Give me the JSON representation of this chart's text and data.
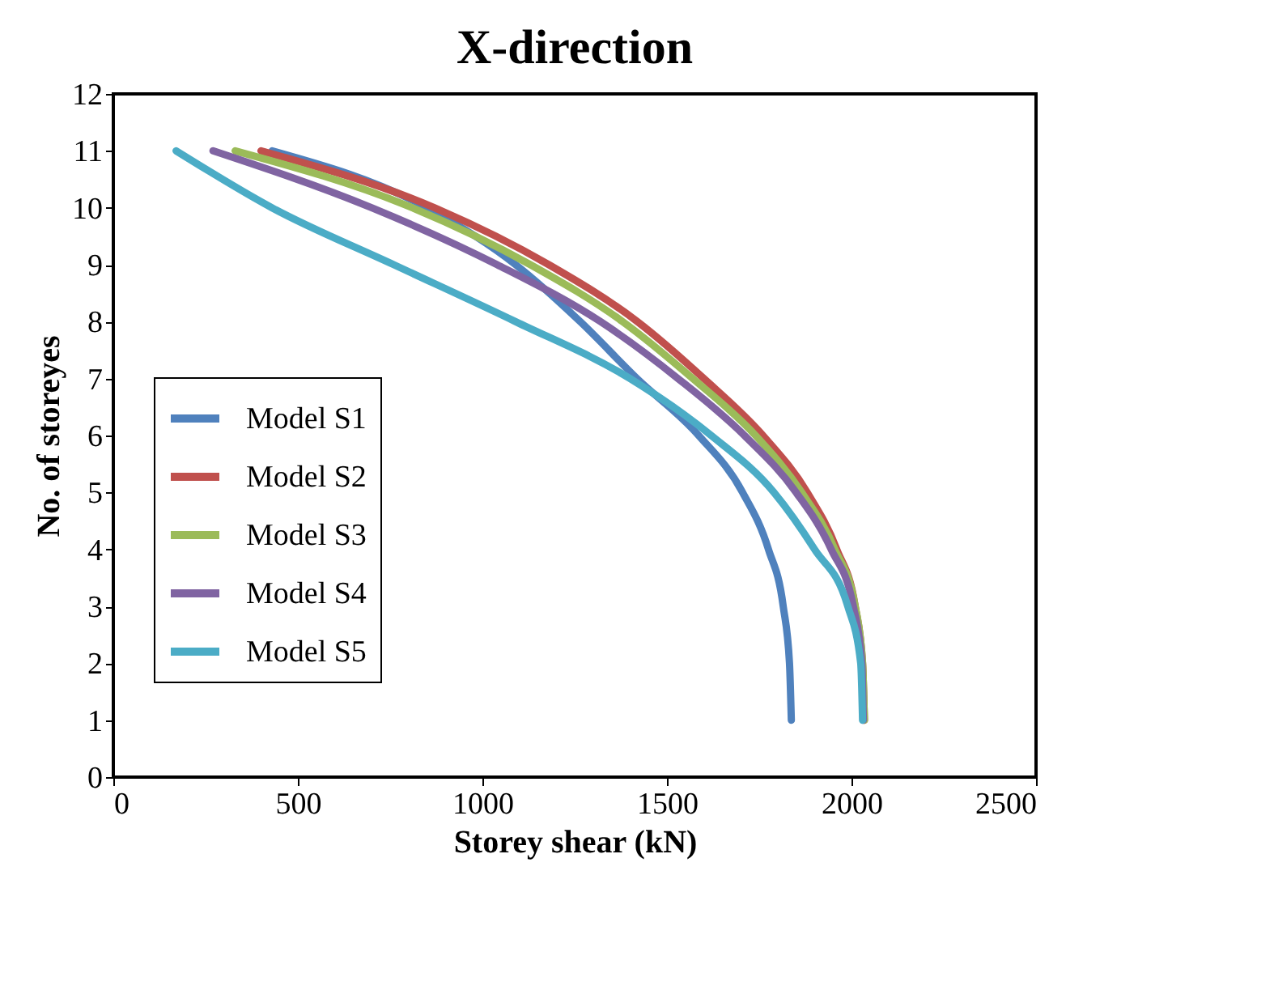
{
  "chart_data": {
    "type": "line",
    "title": "X-direction",
    "xlabel": "Storey shear (kN)",
    "ylabel": "No. of storeyes",
    "xlim": [
      0,
      2500
    ],
    "xticks": [
      0,
      500,
      1000,
      1500,
      2000,
      2500
    ],
    "ylim": [
      0,
      12
    ],
    "yticks": [
      0,
      1,
      2,
      3,
      4,
      5,
      6,
      7,
      8,
      9,
      10,
      11,
      12
    ],
    "grid": false,
    "legend": "bottom left",
    "marker": "none",
    "line_style": "solid",
    "series": [
      {
        "name": "Model S1",
        "color": "#4f81bd",
        "x": [
          1837,
          1832,
          1815,
          1775,
          1705,
          1586,
          1419,
          1265,
          1090,
          850,
          430
        ],
        "values": [
          1,
          2,
          3,
          4,
          5,
          6,
          7,
          8,
          9,
          10,
          11
        ]
      },
      {
        "name": "Model S2",
        "color": "#c0504d",
        "x": [
          2035,
          2030,
          2010,
          1960,
          1880,
          1760,
          1600,
          1420,
          1180,
          870,
          400
        ],
        "values": [
          1,
          2,
          3,
          4,
          5,
          6,
          7,
          8,
          9,
          10,
          11
        ]
      },
      {
        "name": "Model S3",
        "color": "#9bbb59",
        "x": [
          2035,
          2030,
          2010,
          1955,
          1865,
          1740,
          1570,
          1380,
          1130,
          810,
          330
        ],
        "values": [
          1,
          2,
          3,
          4,
          5,
          6,
          7,
          8,
          9,
          10,
          11
        ]
      },
      {
        "name": "Model S4",
        "color": "#8064a2",
        "x": [
          2032,
          2028,
          2005,
          1945,
          1850,
          1710,
          1530,
          1320,
          1040,
          700,
          270
        ],
        "values": [
          1,
          2,
          3,
          4,
          5,
          6,
          7,
          8,
          9,
          10,
          11
        ]
      },
      {
        "name": "Model S5",
        "color": "#4bacc6",
        "x": [
          2030,
          2025,
          1990,
          1900,
          1790,
          1620,
          1400,
          1090,
          760,
          430,
          170
        ],
        "values": [
          1,
          2,
          3,
          4,
          5,
          6,
          7,
          8,
          9,
          10,
          11
        ]
      }
    ]
  }
}
